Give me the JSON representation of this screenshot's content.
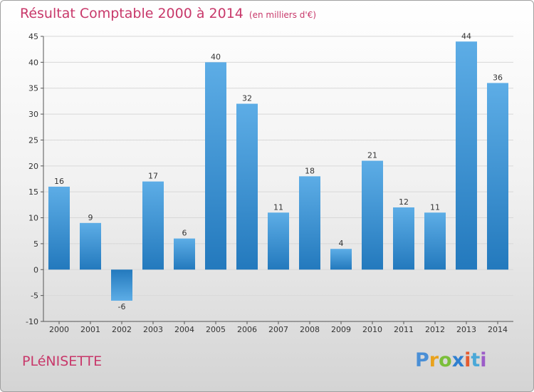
{
  "title": "Résultat Comptable 2000 à 2014",
  "subtitle": "(en milliers d'€)",
  "location": "PLéNISETTE",
  "brand": {
    "letters": [
      "P",
      "r",
      "o",
      "x",
      "i",
      "t",
      "i"
    ],
    "colors": [
      "#4a8fd6",
      "#e9a21c",
      "#7bbf3a",
      "#2f7fd0",
      "#e55b2f",
      "#4aa8d8",
      "#9c5cc8"
    ]
  },
  "colors": {
    "bar_light": "#5dade6",
    "bar_dark": "#2379bd",
    "title": "#c8386a",
    "grid": "#d8d8d8"
  },
  "chart_data": {
    "type": "bar",
    "title": "Résultat Comptable 2000 à 2014",
    "xlabel": "",
    "ylabel": "",
    "ylim": [
      -10,
      45
    ],
    "yticks": [
      -10,
      -5,
      0,
      5,
      10,
      15,
      20,
      25,
      30,
      35,
      40,
      45
    ],
    "grid": true,
    "categories": [
      "2000",
      "2001",
      "2002",
      "2003",
      "2004",
      "2005",
      "2006",
      "2007",
      "2008",
      "2009",
      "2010",
      "2011",
      "2012",
      "2013",
      "2014"
    ],
    "values": [
      16,
      9,
      -6,
      17,
      6,
      40,
      32,
      11,
      18,
      4,
      21,
      12,
      11,
      44,
      36
    ]
  }
}
